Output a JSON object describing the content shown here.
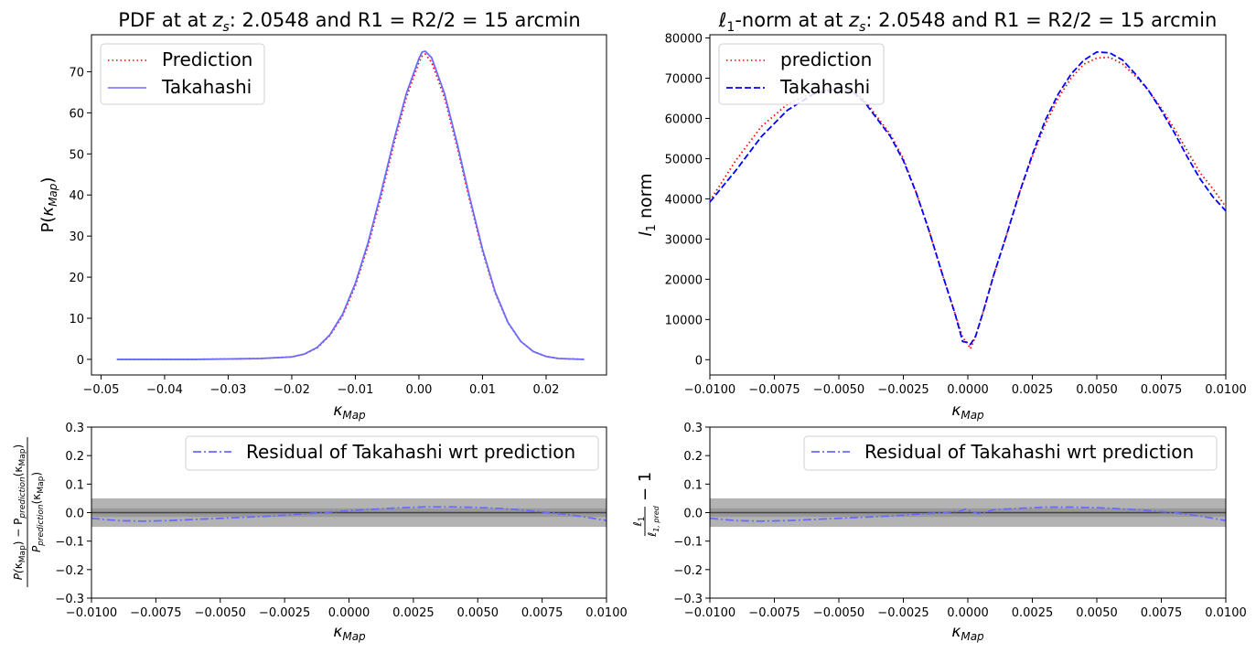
{
  "chart_data": [
    {
      "id": "pdf",
      "type": "line",
      "title": "PDF at at z_s: 2.0548 and R1 = R2/2 = 15 arcmin",
      "title_parts": [
        "PDF at at ",
        "z",
        "s",
        ": 2.0548 and R1 = R2/2 = 15 arcmin"
      ],
      "xlabel": "κ_Map",
      "ylabel": "P(κ_Map)",
      "xlim": [
        -0.0515,
        0.0295
      ],
      "ylim": [
        -3.8,
        79
      ],
      "xticks": [
        -0.05,
        -0.04,
        -0.03,
        -0.02,
        -0.01,
        0.0,
        0.01,
        0.02
      ],
      "xtick_labels": [
        "−0.05",
        "−0.04",
        "−0.03",
        "−0.02",
        "−0.01",
        "0.00",
        "0.01",
        "0.02"
      ],
      "yticks": [
        0,
        10,
        20,
        30,
        40,
        50,
        60,
        70
      ],
      "ytick_labels": [
        "0",
        "10",
        "20",
        "30",
        "40",
        "50",
        "60",
        "70"
      ],
      "grid": false,
      "legend_position": "top-left",
      "series": [
        {
          "name": "Prediction",
          "color": "#ff0000",
          "style": "dotted",
          "x": [
            -0.0475,
            -0.04,
            -0.035,
            -0.03,
            -0.025,
            -0.02,
            -0.018,
            -0.016,
            -0.014,
            -0.012,
            -0.01,
            -0.008,
            -0.006,
            -0.004,
            -0.002,
            0.0,
            0.0005,
            0.001,
            0.002,
            0.004,
            0.006,
            0.008,
            0.01,
            0.012,
            0.014,
            0.016,
            0.018,
            0.02,
            0.022,
            0.026
          ],
          "y": [
            0,
            0,
            0,
            0.1,
            0.2,
            0.6,
            1.3,
            2.8,
            5.8,
            10.6,
            17.9,
            27.6,
            39.3,
            52.0,
            63.6,
            72.3,
            73.8,
            74.3,
            72.3,
            63.8,
            51.7,
            38.6,
            26.3,
            16.1,
            8.9,
            4.4,
            1.9,
            0.7,
            0.2,
            0
          ]
        },
        {
          "name": "Takahashi",
          "color": "#6b6bff",
          "style": "solid",
          "x": [
            -0.0475,
            -0.04,
            -0.035,
            -0.03,
            -0.025,
            -0.02,
            -0.018,
            -0.016,
            -0.014,
            -0.012,
            -0.01,
            -0.008,
            -0.006,
            -0.004,
            -0.002,
            0.0,
            0.0005,
            0.001,
            0.002,
            0.004,
            0.006,
            0.008,
            0.01,
            0.012,
            0.014,
            0.016,
            0.018,
            0.02,
            0.022,
            0.026
          ],
          "y": [
            0,
            0,
            0,
            0.1,
            0.2,
            0.6,
            1.3,
            2.9,
            6.0,
            11.0,
            18.5,
            28.4,
            40.3,
            53.0,
            64.6,
            73.2,
            74.8,
            75.0,
            73.4,
            64.8,
            52.6,
            39.3,
            26.8,
            16.4,
            9.0,
            4.4,
            1.9,
            0.7,
            0.2,
            0
          ]
        }
      ]
    },
    {
      "id": "l1",
      "type": "line",
      "title": "ℓ1-norm at at z_s: 2.0548 and R1 = R2/2 = 15 arcmin",
      "title_parts": [
        "ℓ",
        "1",
        "-norm at at ",
        "z",
        "s",
        ": 2.0548 and R1 = R2/2 = 15 arcmin"
      ],
      "xlabel": "κ_Map",
      "ylabel": "l_1 norm",
      "xlim": [
        -0.01,
        0.01
      ],
      "ylim": [
        -3800,
        80800
      ],
      "xticks": [
        -0.01,
        -0.0075,
        -0.005,
        -0.0025,
        0.0,
        0.0025,
        0.005,
        0.0075,
        0.01
      ],
      "xtick_labels": [
        "−0.0100",
        "−0.0075",
        "−0.0050",
        "−0.0025",
        "0.0000",
        "0.0025",
        "0.0050",
        "0.0075",
        "0.0100"
      ],
      "yticks": [
        0,
        10000,
        20000,
        30000,
        40000,
        50000,
        60000,
        70000,
        80000
      ],
      "ytick_labels": [
        "0",
        "10000",
        "20000",
        "30000",
        "40000",
        "50000",
        "60000",
        "70000",
        "80000"
      ],
      "grid": false,
      "legend_position": "top-left",
      "series": [
        {
          "name": "prediction",
          "color": "#ff0000",
          "style": "dotted",
          "x": [
            -0.01,
            -0.009,
            -0.008,
            -0.007,
            -0.006,
            -0.005,
            -0.0045,
            -0.004,
            -0.003,
            -0.0025,
            -0.002,
            -0.0015,
            -0.001,
            -0.0005,
            -0.0002,
            0.0,
            0.0001,
            0.0003,
            0.0006,
            0.001,
            0.0015,
            0.002,
            0.0025,
            0.003,
            0.0035,
            0.004,
            0.0045,
            0.005,
            0.0055,
            0.006,
            0.0065,
            0.007,
            0.0075,
            0.008,
            0.0085,
            0.009,
            0.0095,
            0.01
          ],
          "y": [
            39500,
            49500,
            58000,
            63500,
            66500,
            67500,
            67000,
            64500,
            56000,
            50000,
            41500,
            32000,
            21500,
            11500,
            5500,
            4000,
            2700,
            5800,
            12000,
            21000,
            31000,
            41500,
            50500,
            58500,
            65000,
            70000,
            73500,
            75000,
            75200,
            73500,
            70500,
            67000,
            62500,
            57500,
            52000,
            46500,
            42500,
            38000
          ]
        },
        {
          "name": "Takahashi",
          "color": "#0000ff",
          "style": "dashed",
          "x": [
            -0.01,
            -0.009,
            -0.008,
            -0.007,
            -0.006,
            -0.005,
            -0.0045,
            -0.004,
            -0.003,
            -0.0025,
            -0.002,
            -0.0015,
            -0.001,
            -0.0005,
            -0.0002,
            0.0,
            0.0001,
            0.0003,
            0.0006,
            0.001,
            0.0015,
            0.002,
            0.0025,
            0.003,
            0.0035,
            0.004,
            0.0045,
            0.005,
            0.0055,
            0.006,
            0.0065,
            0.007,
            0.0075,
            0.008,
            0.0085,
            0.009,
            0.0095,
            0.01
          ],
          "y": [
            39200,
            47000,
            55500,
            62000,
            66000,
            67500,
            66800,
            64000,
            55500,
            49500,
            41500,
            32000,
            21500,
            11500,
            4500,
            4300,
            3800,
            5800,
            12000,
            21000,
            31000,
            41500,
            51000,
            59500,
            66000,
            71000,
            74500,
            76500,
            76300,
            74500,
            71000,
            67000,
            62000,
            56500,
            50500,
            45000,
            40500,
            37000
          ]
        }
      ]
    },
    {
      "id": "pdf_residual",
      "type": "line",
      "title": "",
      "xlabel": "κ_Map",
      "ylabel": "(P(κ_Map) − P_prediction(κ_Map)) / P_prediction(κ_Map)",
      "ylabel_parts": {
        "num_a": "P(",
        "num_b": "κ",
        "num_c": "Map",
        "num_d": ") − P",
        "num_e": "prediction",
        "num_f": "(κ",
        "num_g": "Map",
        "num_h": ")",
        "den_a": "P",
        "den_b": "prediction",
        "den_c": "(κ",
        "den_d": "Map",
        "den_e": ")"
      },
      "xlim": [
        -0.01,
        0.01
      ],
      "ylim": [
        -0.3,
        0.3
      ],
      "xticks": [
        -0.01,
        -0.0075,
        -0.005,
        -0.0025,
        0.0,
        0.0025,
        0.005,
        0.0075,
        0.01
      ],
      "xtick_labels": [
        "−0.0100",
        "−0.0075",
        "−0.0050",
        "−0.0025",
        "0.0000",
        "0.0025",
        "0.0050",
        "0.0075",
        "0.0100"
      ],
      "yticks": [
        -0.3,
        -0.2,
        -0.1,
        0.0,
        0.1,
        0.2,
        0.3
      ],
      "ytick_labels": [
        "−0.3",
        "−0.2",
        "−0.1",
        "0.0",
        "0.1",
        "0.2",
        "0.3"
      ],
      "bands": [
        0.05,
        0.015
      ],
      "band_colors": [
        "#b3b3b3",
        "#9a9a9a"
      ],
      "zero_line_color": "#444444",
      "grid": false,
      "legend_position": "top-right",
      "series": [
        {
          "name": "Residual of Takahashi wrt prediction",
          "color": "#6b6bff",
          "style": "dashdot",
          "x": [
            -0.01,
            -0.009,
            -0.008,
            -0.007,
            -0.006,
            -0.005,
            -0.004,
            -0.003,
            -0.002,
            -0.001,
            0.0,
            0.001,
            0.002,
            0.003,
            0.004,
            0.005,
            0.006,
            0.007,
            0.008,
            0.009,
            0.01
          ],
          "y": [
            -0.02,
            -0.028,
            -0.03,
            -0.028,
            -0.024,
            -0.02,
            -0.016,
            -0.012,
            -0.006,
            0.0,
            0.007,
            0.012,
            0.017,
            0.02,
            0.02,
            0.018,
            0.014,
            0.007,
            -0.002,
            -0.013,
            -0.028
          ]
        }
      ]
    },
    {
      "id": "l1_residual",
      "type": "line",
      "title": "",
      "xlabel": "κ_Map",
      "ylabel": "ℓ1 / ℓ1,pred − 1",
      "ylabel_parts": {
        "num_a": "ℓ",
        "num_b": "1",
        "den_a": "ℓ",
        "den_b": "1, pred",
        "tail": "− 1"
      },
      "xlim": [
        -0.01,
        0.01
      ],
      "ylim": [
        -0.3,
        0.3
      ],
      "xticks": [
        -0.01,
        -0.0075,
        -0.005,
        -0.0025,
        0.0,
        0.0025,
        0.005,
        0.0075,
        0.01
      ],
      "xtick_labels": [
        "−0.0100",
        "−0.0075",
        "−0.0050",
        "−0.0025",
        "0.0000",
        "0.0025",
        "0.0050",
        "0.0075",
        "0.0100"
      ],
      "yticks": [
        -0.3,
        -0.2,
        -0.1,
        0.0,
        0.1,
        0.2,
        0.3
      ],
      "ytick_labels": [
        "−0.3",
        "−0.2",
        "−0.1",
        "0.0",
        "0.1",
        "0.2",
        "0.3"
      ],
      "bands": [
        0.05,
        0.015
      ],
      "band_colors": [
        "#b3b3b3",
        "#9a9a9a"
      ],
      "zero_line_color": "#444444",
      "grid": false,
      "legend_position": "top-right",
      "series": [
        {
          "name": "Residual of Takahashi wrt prediction",
          "color": "#6b6bff",
          "style": "dashdot",
          "x": [
            -0.01,
            -0.009,
            -0.008,
            -0.007,
            -0.006,
            -0.005,
            -0.004,
            -0.003,
            -0.002,
            -0.001,
            -0.0003,
            -0.0001,
            0.0004,
            0.001,
            0.002,
            0.003,
            0.004,
            0.005,
            0.006,
            0.007,
            0.008,
            0.009,
            0.01
          ],
          "y": [
            -0.02,
            -0.028,
            -0.03,
            -0.028,
            -0.024,
            -0.02,
            -0.016,
            -0.012,
            -0.006,
            0.0,
            0.005,
            0.012,
            -0.004,
            0.01,
            0.015,
            0.019,
            0.019,
            0.017,
            0.013,
            0.007,
            0.0,
            -0.012,
            -0.028
          ]
        }
      ]
    }
  ]
}
